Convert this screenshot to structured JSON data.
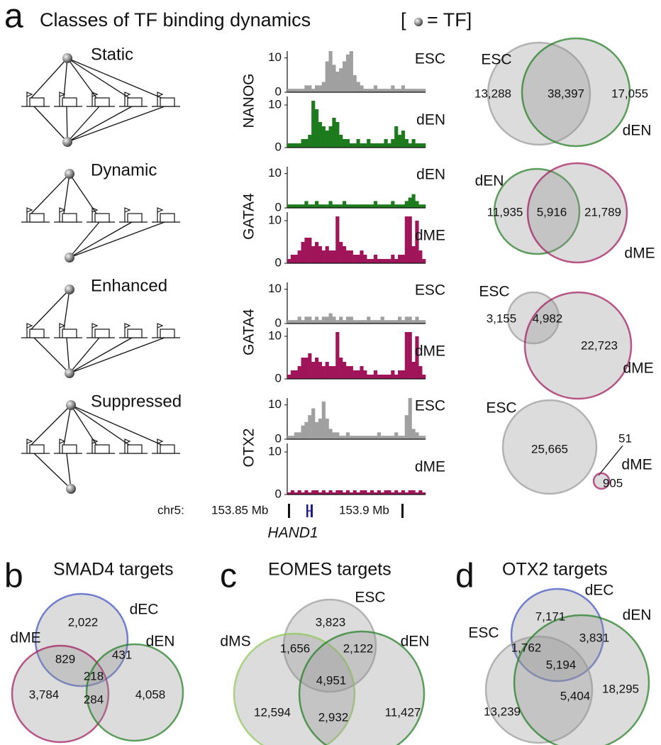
{
  "panel_a": {
    "letter": "a",
    "title": "Classes of TF binding dynamics",
    "legend_open": "[",
    "legend_text": "= TF]",
    "classes": [
      "Static",
      "Dynamic",
      "Enhanced",
      "Suppressed"
    ],
    "tracks": {
      "ylim": [
        0,
        12
      ],
      "yticks": [
        0,
        10
      ],
      "rows": [
        {
          "tf": "NANOG",
          "upper": {
            "label": "ESC",
            "color": "#a0a0a0",
            "values": [
              1,
              1,
              1,
              1,
              1,
              2,
              2,
              1,
              2,
              2,
              3,
              9,
              12,
              8,
              6,
              7,
              9,
              11,
              12,
              5,
              3,
              2,
              1,
              1,
              1,
              2,
              1,
              1,
              1,
              1,
              2,
              1,
              1,
              2,
              1,
              1,
              1,
              1,
              1,
              1
            ]
          },
          "lower": {
            "label": "dEN",
            "color": "#1d7a1d",
            "values": [
              1,
              1,
              1,
              1,
              2,
              2,
              3,
              11,
              9,
              6,
              5,
              4,
              5,
              7,
              6,
              3,
              2,
              2,
              1,
              1,
              2,
              1,
              1,
              2,
              1,
              1,
              1,
              1,
              2,
              1,
              2,
              5,
              3,
              4,
              2,
              1,
              2,
              1,
              1,
              1
            ]
          }
        },
        {
          "tf": "GATA4",
          "upper": {
            "label": "dEN",
            "color": "#1d7a1d",
            "values": [
              1,
              1,
              1,
              1,
              1,
              2,
              1,
              1,
              2,
              1,
              1,
              1,
              2,
              1,
              1,
              1,
              2,
              1,
              1,
              1,
              1,
              1,
              1,
              1,
              1,
              2,
              1,
              1,
              1,
              1,
              2,
              1,
              1,
              1,
              2,
              3,
              4,
              2,
              1,
              1
            ]
          },
          "lower": {
            "label": "dME",
            "color": "#a0145a",
            "values": [
              1,
              2,
              2,
              3,
              5,
              6,
              6,
              4,
              5,
              4,
              3,
              4,
              3,
              3,
              11,
              5,
              4,
              3,
              3,
              2,
              2,
              3,
              2,
              1,
              1,
              2,
              1,
              1,
              1,
              1,
              2,
              1,
              2,
              2,
              11,
              11,
              4,
              10,
              3,
              1
            ]
          }
        },
        {
          "tf": "GATA4",
          "upper": {
            "label": "ESC",
            "color": "#a0a0a0",
            "values": [
              1,
              1,
              1,
              2,
              1,
              2,
              2,
              1,
              2,
              1,
              2,
              2,
              3,
              2,
              1,
              2,
              1,
              2,
              2,
              1,
              1,
              1,
              1,
              2,
              1,
              1,
              1,
              2,
              1,
              1,
              1,
              1,
              2,
              1,
              2,
              2,
              1,
              2,
              1,
              1
            ]
          },
          "lower": {
            "label": "dME",
            "color": "#a0145a",
            "values": [
              1,
              2,
              2,
              3,
              5,
              5,
              6,
              4,
              5,
              4,
              3,
              4,
              3,
              3,
              11,
              5,
              4,
              3,
              3,
              2,
              2,
              3,
              2,
              1,
              1,
              2,
              1,
              1,
              1,
              1,
              2,
              1,
              2,
              2,
              11,
              11,
              4,
              10,
              3,
              1
            ]
          }
        },
        {
          "tf": "OTX2",
          "upper": {
            "label": "ESC",
            "color": "#a0a0a0",
            "values": [
              1,
              1,
              2,
              2,
              4,
              5,
              7,
              9,
              5,
              6,
              11,
              6,
              3,
              2,
              2,
              1,
              1,
              2,
              1,
              1,
              1,
              1,
              1,
              1,
              1,
              1,
              2,
              1,
              1,
              1,
              1,
              2,
              1,
              1,
              7,
              12,
              3,
              2,
              1,
              1
            ]
          },
          "lower": {
            "label": "dME",
            "color": "#a0145a",
            "values": [
              0.5,
              1,
              0.5,
              1,
              0.5,
              1,
              0.5,
              1,
              1,
              0.5,
              1,
              0.5,
              1,
              0.5,
              1,
              1,
              0.5,
              1,
              0.5,
              1,
              0.5,
              1,
              1,
              0.5,
              1,
              0.5,
              1,
              0.5,
              1,
              1,
              0.5,
              1,
              0.5,
              1,
              0.5,
              1,
              1,
              0.5,
              1,
              0.5
            ]
          }
        }
      ],
      "coordinate": {
        "chrom": "chr5:",
        "left": "153.85 Mb",
        "right": "153.9 Mb",
        "gene": "HAND1"
      }
    },
    "venns": [
      {
        "sets": [
          {
            "label": "ESC",
            "color": "#9a9a9a"
          },
          {
            "label": "dEN",
            "color": "#1d7a1d"
          }
        ],
        "regions": [
          "13,288",
          "38,397",
          "17,055"
        ]
      },
      {
        "sets": [
          {
            "label": "dEN",
            "color": "#1d7a1d"
          },
          {
            "label": "dME",
            "color": "#a0145a"
          }
        ],
        "regions": [
          "11,935",
          "5,916",
          "21,789"
        ]
      },
      {
        "sets": [
          {
            "label": "ESC",
            "color": "#9a9a9a"
          },
          {
            "label": "dME",
            "color": "#a0145a"
          }
        ],
        "regions": [
          "3,155",
          "4,982",
          "22,723"
        ]
      },
      {
        "sets": [
          {
            "label": "ESC",
            "color": "#9a9a9a"
          },
          {
            "label": "dME",
            "color": "#a0145a"
          }
        ],
        "regions": [
          "25,665",
          "51",
          "905"
        ]
      }
    ]
  },
  "panel_b": {
    "letter": "b",
    "title": "SMAD4 targets",
    "sets": [
      {
        "label": "dEC",
        "color": "#3a4ec0"
      },
      {
        "label": "dME",
        "color": "#a0145a"
      },
      {
        "label": "dEN",
        "color": "#1d7a1d"
      }
    ],
    "regions": [
      "2,022",
      "829",
      "431",
      "218",
      "3,784",
      "284",
      "4,058"
    ]
  },
  "panel_c": {
    "letter": "c",
    "title": "EOMES targets",
    "sets": [
      {
        "label": "ESC",
        "color": "#9a9a9a"
      },
      {
        "label": "dMS",
        "color": "#8cc850"
      },
      {
        "label": "dEN",
        "color": "#1d7a1d"
      }
    ],
    "regions": [
      "3,823",
      "1,656",
      "2,122",
      "4,951",
      "12,594",
      "2,932",
      "11,427"
    ]
  },
  "panel_d": {
    "letter": "d",
    "title": "OTX2 targets",
    "sets": [
      {
        "label": "dEC",
        "color": "#3a4ec0"
      },
      {
        "label": "ESC",
        "color": "#9a9a9a"
      },
      {
        "label": "dEN",
        "color": "#1d7a1d"
      }
    ],
    "regions": [
      "7,171",
      "3,831",
      "1,762",
      "5,194",
      "13,239",
      "5,404",
      "18,295"
    ]
  }
}
